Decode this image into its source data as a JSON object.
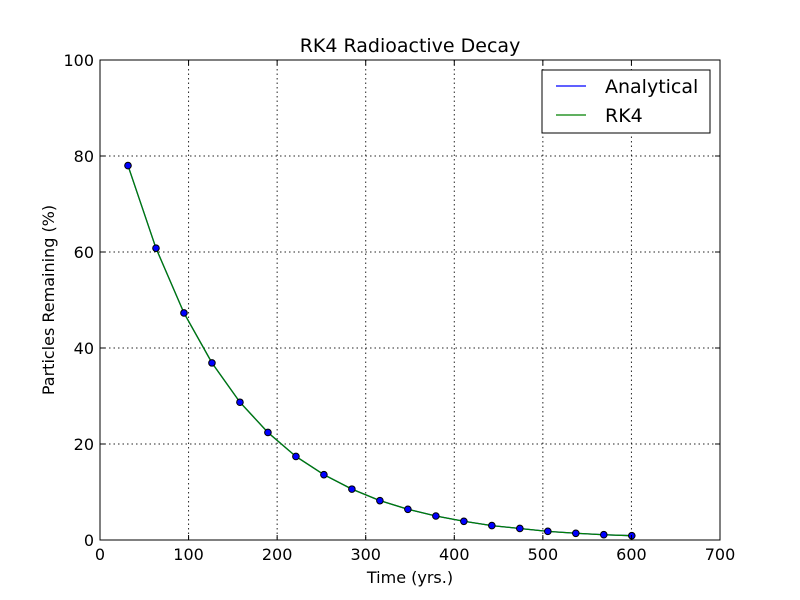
{
  "chart_data": {
    "type": "line",
    "title": "RK4 Radioactive Decay",
    "xlabel": "Time (yrs.)",
    "ylabel": "Particles Remaining (%)",
    "xlim": [
      0,
      700
    ],
    "ylim": [
      0,
      100
    ],
    "xticks": [
      0,
      100,
      200,
      300,
      400,
      500,
      600,
      700
    ],
    "yticks": [
      0,
      20,
      40,
      60,
      80,
      100
    ],
    "grid": true,
    "legend_position": "top-right",
    "x": [
      31.6,
      63.2,
      94.8,
      126.4,
      158,
      189.6,
      221.2,
      252.8,
      284.4,
      316,
      347.6,
      379.2,
      410.8,
      442.4,
      474,
      505.6,
      537.2,
      568.8,
      600.4
    ],
    "series": [
      {
        "name": "Analytical",
        "color": "#0000ff",
        "values": [
          78.0,
          60.8,
          47.3,
          36.9,
          28.7,
          22.4,
          17.4,
          13.6,
          10.6,
          8.2,
          6.4,
          5.0,
          3.9,
          3.0,
          2.4,
          1.8,
          1.4,
          1.1,
          0.9
        ]
      },
      {
        "name": "RK4",
        "color": "#008000",
        "values": [
          78.0,
          60.8,
          47.3,
          36.9,
          28.7,
          22.4,
          17.4,
          13.6,
          10.6,
          8.2,
          6.4,
          5.0,
          3.9,
          3.0,
          2.4,
          1.8,
          1.4,
          1.1,
          0.9
        ]
      }
    ],
    "markers": {
      "series": "Analytical",
      "face_color": "#0000ff",
      "edge_color": "#000000"
    }
  }
}
